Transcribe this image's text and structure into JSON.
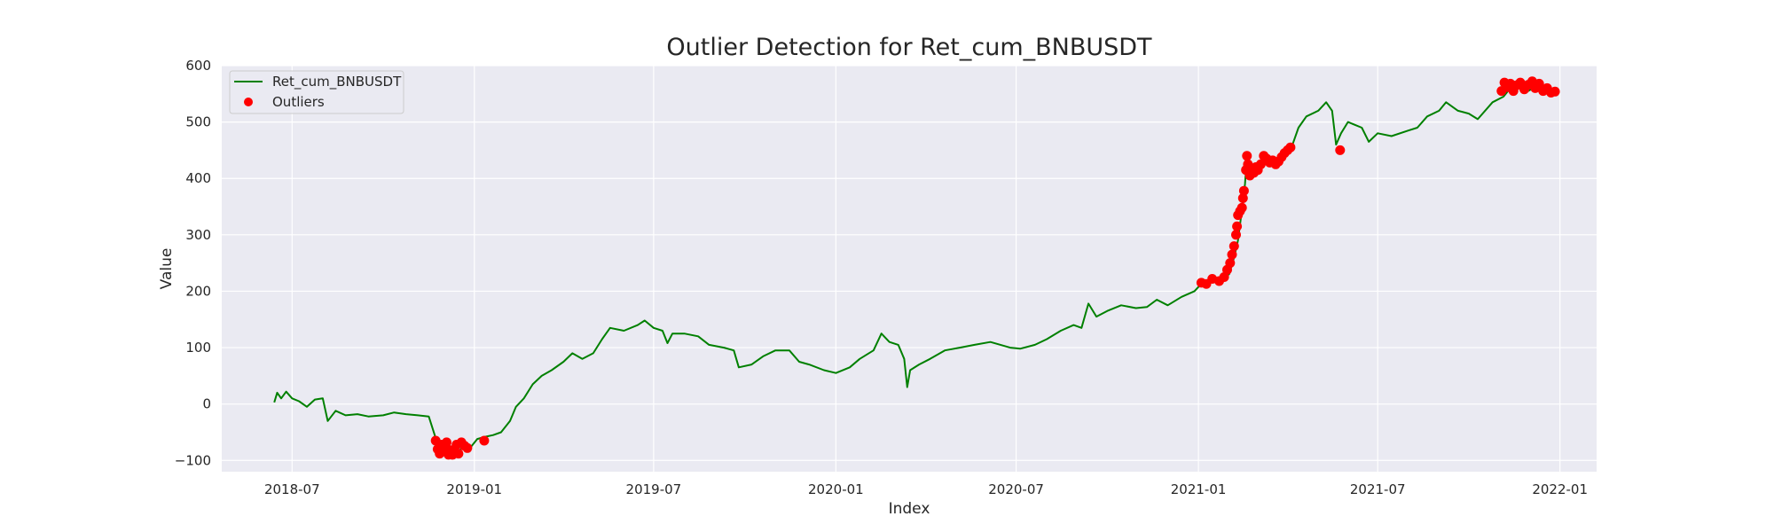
{
  "chart_data": {
    "type": "line",
    "title": "Outlier Detection for Ret_cum_BNBUSDT",
    "xlabel": "Index",
    "ylabel": "Value",
    "x_axis_type": "date",
    "xlim": [
      "2018-04-21",
      "2022-02-07"
    ],
    "ylim": [
      -120,
      600
    ],
    "yticks": [
      -100,
      0,
      100,
      200,
      300,
      400,
      500,
      600
    ],
    "xticks": [
      "2018-07",
      "2019-01",
      "2019-07",
      "2020-01",
      "2020-07",
      "2021-01",
      "2021-07",
      "2022-01"
    ],
    "grid": true,
    "legend_position": "top-left",
    "colors": {
      "plot_background": "#eaeaf2",
      "grid": "#ffffff",
      "line": "#008000",
      "outlier": "#ff0000"
    },
    "series": [
      {
        "name": "Ret_cum_BNBUSDT",
        "kind": "line",
        "points": [
          [
            "2018-06-13",
            3
          ],
          [
            "2018-06-16",
            20
          ],
          [
            "2018-06-20",
            10
          ],
          [
            "2018-06-25",
            22
          ],
          [
            "2018-07-01",
            10
          ],
          [
            "2018-07-08",
            5
          ],
          [
            "2018-07-16",
            -5
          ],
          [
            "2018-07-24",
            8
          ],
          [
            "2018-08-01",
            10
          ],
          [
            "2018-08-06",
            -30
          ],
          [
            "2018-08-14",
            -12
          ],
          [
            "2018-08-24",
            -20
          ],
          [
            "2018-09-05",
            -18
          ],
          [
            "2018-09-16",
            -22
          ],
          [
            "2018-10-01",
            -20
          ],
          [
            "2018-10-12",
            -15
          ],
          [
            "2018-10-24",
            -18
          ],
          [
            "2018-11-05",
            -20
          ],
          [
            "2018-11-16",
            -22
          ],
          [
            "2018-11-22",
            -55
          ],
          [
            "2018-11-26",
            -80
          ],
          [
            "2018-12-01",
            -85
          ],
          [
            "2018-12-08",
            -78
          ],
          [
            "2018-12-15",
            -88
          ],
          [
            "2018-12-22",
            -70
          ],
          [
            "2018-12-29",
            -75
          ],
          [
            "2019-01-04",
            -62
          ],
          [
            "2019-01-12",
            -58
          ],
          [
            "2019-01-20",
            -55
          ],
          [
            "2019-01-28",
            -50
          ],
          [
            "2019-02-06",
            -30
          ],
          [
            "2019-02-12",
            -5
          ],
          [
            "2019-02-20",
            10
          ],
          [
            "2019-03-01",
            35
          ],
          [
            "2019-03-10",
            50
          ],
          [
            "2019-03-20",
            60
          ],
          [
            "2019-04-01",
            75
          ],
          [
            "2019-04-10",
            90
          ],
          [
            "2019-04-20",
            80
          ],
          [
            "2019-05-01",
            90
          ],
          [
            "2019-05-10",
            115
          ],
          [
            "2019-05-18",
            135
          ],
          [
            "2019-06-01",
            130
          ],
          [
            "2019-06-15",
            140
          ],
          [
            "2019-06-22",
            148
          ],
          [
            "2019-07-01",
            135
          ],
          [
            "2019-07-10",
            130
          ],
          [
            "2019-07-15",
            108
          ],
          [
            "2019-07-20",
            125
          ],
          [
            "2019-08-01",
            125
          ],
          [
            "2019-08-15",
            120
          ],
          [
            "2019-08-26",
            105
          ],
          [
            "2019-09-10",
            100
          ],
          [
            "2019-09-20",
            95
          ],
          [
            "2019-09-25",
            65
          ],
          [
            "2019-10-08",
            70
          ],
          [
            "2019-10-20",
            85
          ],
          [
            "2019-11-01",
            95
          ],
          [
            "2019-11-15",
            95
          ],
          [
            "2019-11-25",
            75
          ],
          [
            "2019-12-05",
            70
          ],
          [
            "2019-12-20",
            60
          ],
          [
            "2020-01-01",
            55
          ],
          [
            "2020-01-15",
            65
          ],
          [
            "2020-01-25",
            80
          ],
          [
            "2020-02-08",
            95
          ],
          [
            "2020-02-16",
            125
          ],
          [
            "2020-02-24",
            110
          ],
          [
            "2020-03-04",
            105
          ],
          [
            "2020-03-10",
            80
          ],
          [
            "2020-03-13",
            30
          ],
          [
            "2020-03-16",
            60
          ],
          [
            "2020-03-25",
            70
          ],
          [
            "2020-04-05",
            80
          ],
          [
            "2020-04-20",
            95
          ],
          [
            "2020-05-05",
            100
          ],
          [
            "2020-05-20",
            105
          ],
          [
            "2020-06-05",
            110
          ],
          [
            "2020-06-25",
            100
          ],
          [
            "2020-07-05",
            98
          ],
          [
            "2020-07-20",
            105
          ],
          [
            "2020-08-01",
            115
          ],
          [
            "2020-08-15",
            130
          ],
          [
            "2020-08-28",
            140
          ],
          [
            "2020-09-05",
            135
          ],
          [
            "2020-09-12",
            178
          ],
          [
            "2020-09-20",
            155
          ],
          [
            "2020-10-01",
            165
          ],
          [
            "2020-10-15",
            175
          ],
          [
            "2020-10-30",
            170
          ],
          [
            "2020-11-10",
            172
          ],
          [
            "2020-11-20",
            185
          ],
          [
            "2020-12-01",
            175
          ],
          [
            "2020-12-15",
            190
          ],
          [
            "2020-12-28",
            200
          ],
          [
            "2021-01-05",
            215
          ],
          [
            "2021-01-20",
            220
          ],
          [
            "2021-02-01",
            230
          ],
          [
            "2021-02-06",
            260
          ],
          [
            "2021-02-10",
            290
          ],
          [
            "2021-02-14",
            345
          ],
          [
            "2021-02-17",
            390
          ],
          [
            "2021-02-19",
            440
          ],
          [
            "2021-02-22",
            410
          ],
          [
            "2021-03-01",
            420
          ],
          [
            "2021-03-08",
            435
          ],
          [
            "2021-03-16",
            430
          ],
          [
            "2021-03-24",
            425
          ],
          [
            "2021-04-01",
            445
          ],
          [
            "2021-04-06",
            460
          ],
          [
            "2021-04-12",
            490
          ],
          [
            "2021-04-20",
            510
          ],
          [
            "2021-05-02",
            520
          ],
          [
            "2021-05-10",
            535
          ],
          [
            "2021-05-16",
            520
          ],
          [
            "2021-05-20",
            460
          ],
          [
            "2021-05-25",
            480
          ],
          [
            "2021-06-01",
            500
          ],
          [
            "2021-06-15",
            490
          ],
          [
            "2021-06-22",
            465
          ],
          [
            "2021-07-01",
            480
          ],
          [
            "2021-07-15",
            475
          ],
          [
            "2021-08-01",
            485
          ],
          [
            "2021-08-10",
            490
          ],
          [
            "2021-08-20",
            510
          ],
          [
            "2021-09-01",
            520
          ],
          [
            "2021-09-08",
            535
          ],
          [
            "2021-09-20",
            520
          ],
          [
            "2021-10-01",
            515
          ],
          [
            "2021-10-10",
            505
          ],
          [
            "2021-10-25",
            535
          ],
          [
            "2021-11-05",
            545
          ],
          [
            "2021-11-12",
            560
          ],
          [
            "2021-11-20",
            565
          ],
          [
            "2021-11-30",
            555
          ],
          [
            "2021-12-10",
            565
          ],
          [
            "2021-12-20",
            555
          ],
          [
            "2021-12-27",
            553
          ]
        ]
      },
      {
        "name": "Outliers",
        "kind": "scatter",
        "points": [
          [
            "2018-11-23",
            -65
          ],
          [
            "2018-11-25",
            -80
          ],
          [
            "2018-11-27",
            -88
          ],
          [
            "2018-11-29",
            -72
          ],
          [
            "2018-12-02",
            -78
          ],
          [
            "2018-12-04",
            -68
          ],
          [
            "2018-12-06",
            -90
          ],
          [
            "2018-12-08",
            -82
          ],
          [
            "2018-12-10",
            -90
          ],
          [
            "2018-12-12",
            -84
          ],
          [
            "2018-12-14",
            -72
          ],
          [
            "2018-12-16",
            -88
          ],
          [
            "2018-12-19",
            -68
          ],
          [
            "2018-12-22",
            -74
          ],
          [
            "2018-12-25",
            -78
          ],
          [
            "2019-01-11",
            -65
          ],
          [
            "2021-01-04",
            215
          ],
          [
            "2021-01-09",
            213
          ],
          [
            "2021-01-15",
            222
          ],
          [
            "2021-01-22",
            218
          ],
          [
            "2021-01-27",
            225
          ],
          [
            "2021-01-30",
            238
          ],
          [
            "2021-02-02",
            250
          ],
          [
            "2021-02-04",
            265
          ],
          [
            "2021-02-06",
            280
          ],
          [
            "2021-02-08",
            300
          ],
          [
            "2021-02-09",
            315
          ],
          [
            "2021-02-10",
            335
          ],
          [
            "2021-02-12",
            342
          ],
          [
            "2021-02-14",
            348
          ],
          [
            "2021-02-15",
            365
          ],
          [
            "2021-02-16",
            378
          ],
          [
            "2021-02-18",
            415
          ],
          [
            "2021-02-19",
            440
          ],
          [
            "2021-02-20",
            425
          ],
          [
            "2021-02-22",
            405
          ],
          [
            "2021-02-24",
            418
          ],
          [
            "2021-02-26",
            410
          ],
          [
            "2021-02-28",
            420
          ],
          [
            "2021-03-02",
            415
          ],
          [
            "2021-03-05",
            425
          ],
          [
            "2021-03-08",
            440
          ],
          [
            "2021-03-11",
            435
          ],
          [
            "2021-03-14",
            428
          ],
          [
            "2021-03-17",
            432
          ],
          [
            "2021-03-20",
            425
          ],
          [
            "2021-03-23",
            430
          ],
          [
            "2021-03-26",
            438
          ],
          [
            "2021-03-29",
            445
          ],
          [
            "2021-04-01",
            450
          ],
          [
            "2021-04-04",
            455
          ],
          [
            "2021-05-24",
            450
          ],
          [
            "2021-11-03",
            555
          ],
          [
            "2021-11-06",
            570
          ],
          [
            "2021-11-09",
            562
          ],
          [
            "2021-11-12",
            568
          ],
          [
            "2021-11-15",
            555
          ],
          [
            "2021-11-18",
            565
          ],
          [
            "2021-11-22",
            570
          ],
          [
            "2021-11-26",
            558
          ],
          [
            "2021-11-30",
            566
          ],
          [
            "2021-12-04",
            572
          ],
          [
            "2021-12-07",
            560
          ],
          [
            "2021-12-11",
            568
          ],
          [
            "2021-12-15",
            555
          ],
          [
            "2021-12-19",
            560
          ],
          [
            "2021-12-23",
            552
          ],
          [
            "2021-12-27",
            554
          ]
        ]
      }
    ]
  }
}
